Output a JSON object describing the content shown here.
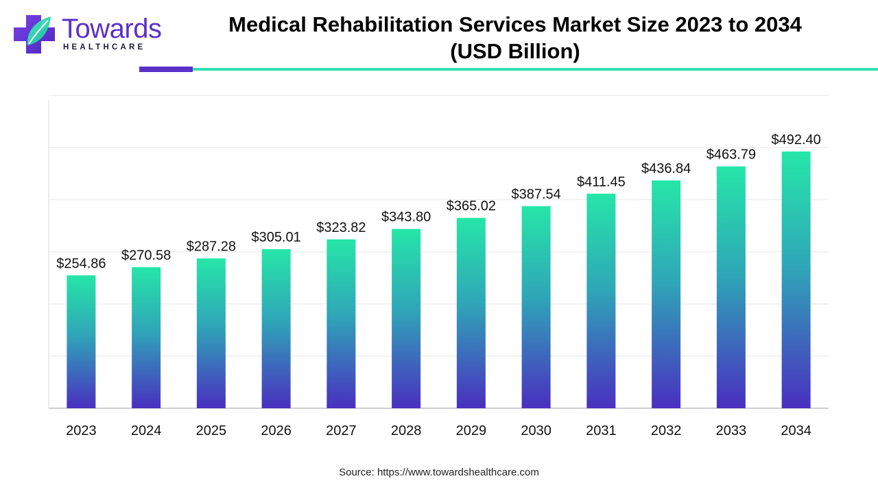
{
  "brand": {
    "name": "Towards",
    "tagline": "HEALTHCARE",
    "colors": {
      "purple": "#5b2fc9",
      "teal": "#2ee0b0"
    }
  },
  "header": {
    "title_line1": "Medical Rehabilitation Services Market Size 2023 to 2034",
    "title_line2": "(USD Billion)"
  },
  "chart_data": {
    "type": "bar",
    "title": "Medical Rehabilitation Services Market Size 2023 to 2034 (USD Billion)",
    "categories": [
      "2023",
      "2024",
      "2025",
      "2026",
      "2027",
      "2028",
      "2029",
      "2030",
      "2031",
      "2032",
      "2033",
      "2034"
    ],
    "values": [
      254.86,
      270.58,
      287.28,
      305.01,
      323.82,
      343.8,
      365.02,
      387.54,
      411.45,
      436.84,
      463.79,
      492.4
    ],
    "value_labels": [
      "$254.86",
      "$270.58",
      "$287.28",
      "$305.01",
      "$323.82",
      "$343.80",
      "$365.02",
      "$387.54",
      "$411.45",
      "$436.84",
      "$463.79",
      "$492.40"
    ],
    "xlabel": "",
    "ylabel": "",
    "ylim": [
      0,
      600
    ],
    "grid": true,
    "legend": "none",
    "bar_gradient": {
      "top": "#26e6a8",
      "bottom": "#4a2fc0"
    }
  },
  "footer": {
    "source": "Source: https://www.towardshealthcare.com"
  }
}
